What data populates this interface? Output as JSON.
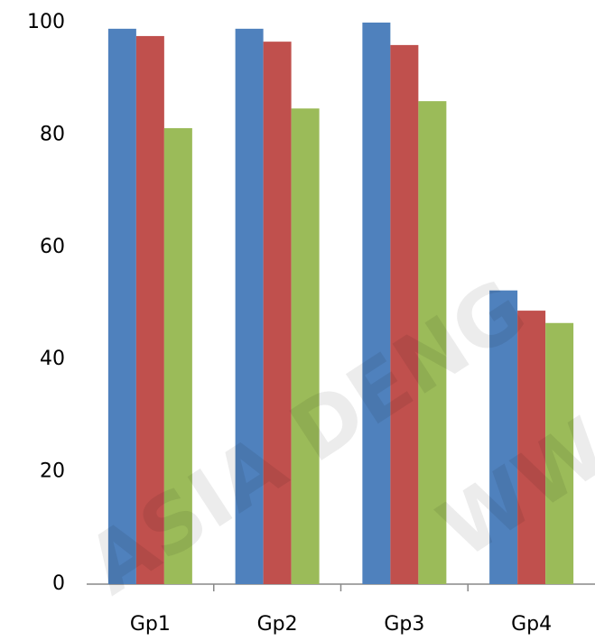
{
  "chart_data": {
    "type": "bar",
    "categories": [
      "Gp1",
      "Gp2",
      "Gp3",
      "Gp4"
    ],
    "series": [
      {
        "color": "#4f81bd",
        "values": [
          98.9,
          98.9,
          100,
          52.3
        ]
      },
      {
        "color": "#c0504d",
        "values": [
          97.6,
          96.6,
          96,
          48.7
        ]
      },
      {
        "color": "#9bbb59",
        "values": [
          81.2,
          84.7,
          86,
          46.5
        ]
      }
    ],
    "ylim": [
      0,
      100
    ],
    "yticks": [
      0,
      20,
      40,
      60,
      80,
      100
    ],
    "grid": false,
    "annotations": [
      "ASIA DENG",
      "WW"
    ]
  }
}
